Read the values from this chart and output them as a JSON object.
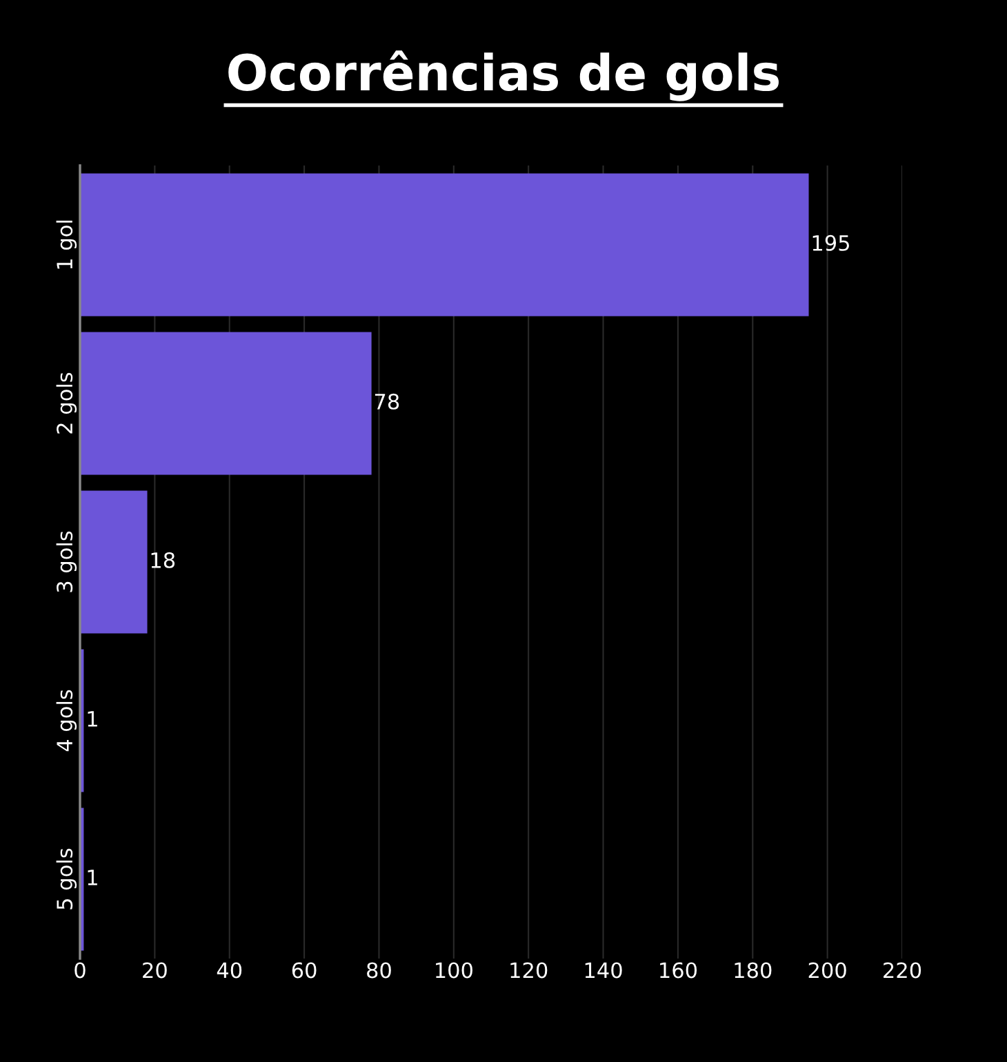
{
  "chart_data": {
    "type": "bar",
    "title": "Ocorrências de gols",
    "orientation": "horizontal",
    "categories": [
      "1 gol",
      "2 gols",
      "3 gols",
      "4 gols",
      "5 gols"
    ],
    "values": [
      195,
      78,
      18,
      1,
      1
    ],
    "color": "#6c55d9",
    "xlim": [
      0,
      220
    ],
    "xticks": [
      0,
      20,
      40,
      60,
      80,
      100,
      120,
      140,
      160,
      180,
      200,
      220
    ],
    "grid": "x",
    "data_labels": true
  }
}
